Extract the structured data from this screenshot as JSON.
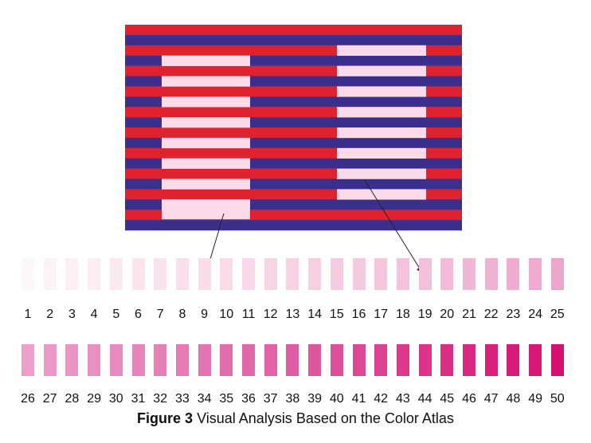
{
  "caption": {
    "label": "Figure 3",
    "text": "Visual Analysis Based on the Color Atlas"
  },
  "colors": {
    "red": "#e0222e",
    "blue": "#3a2f8d",
    "light_pink": "#fbdbea",
    "arrow": "#222222"
  },
  "pattern": {
    "stripe_rows": [
      "red",
      "blue",
      "red",
      "blue",
      "red",
      "blue",
      "red",
      "blue",
      "red",
      "blue",
      "red",
      "blue",
      "red",
      "blue",
      "red",
      "blue",
      "red",
      "blue",
      "red",
      "blue"
    ]
  },
  "color_atlas": {
    "row1": {
      "numbers": [
        "1",
        "2",
        "3",
        "4",
        "5",
        "6",
        "7",
        "8",
        "9",
        "10",
        "11",
        "12",
        "13",
        "14",
        "15",
        "16",
        "17",
        "18",
        "19",
        "20",
        "21",
        "22",
        "23",
        "24",
        "25"
      ],
      "colors": [
        "#fdf7f9",
        "#fdf2f6",
        "#fdf0f5",
        "#fcecf3",
        "#fbe9f2",
        "#fbe6f0",
        "#fae3ee",
        "#fae0ec",
        "#f9ddeb",
        "#f9dbea",
        "#f8d8e8",
        "#f8d5e6",
        "#f7d2e5",
        "#f7cfe3",
        "#f6cce1",
        "#f5c9e0",
        "#f5c6de",
        "#f4c3dc",
        "#f3bfda",
        "#f2bad8",
        "#f1b6d5",
        "#f0b2d3",
        "#efaed1",
        "#eeabcf",
        "#eda7cd"
      ]
    },
    "row2": {
      "numbers": [
        "26",
        "27",
        "28",
        "29",
        "30",
        "31",
        "32",
        "33",
        "34",
        "35",
        "36",
        "37",
        "38",
        "39",
        "40",
        "41",
        "42",
        "43",
        "44",
        "45",
        "46",
        "47",
        "48",
        "49",
        "50"
      ],
      "colors": [
        "#ec9fca",
        "#eb9ac7",
        "#ea95c4",
        "#e98fc1",
        "#e88abe",
        "#e785bb",
        "#e680b8",
        "#e57ab5",
        "#e474b1",
        "#e36eae",
        "#e268aa",
        "#e162a6",
        "#e05ca2",
        "#df569e",
        "#de4f9a",
        "#dd4895",
        "#dc4291",
        "#dc3b8c",
        "#db3488",
        "#da2e84",
        "#d92880",
        "#d8227c",
        "#d71c78",
        "#d71675",
        "#d61071"
      ]
    }
  }
}
